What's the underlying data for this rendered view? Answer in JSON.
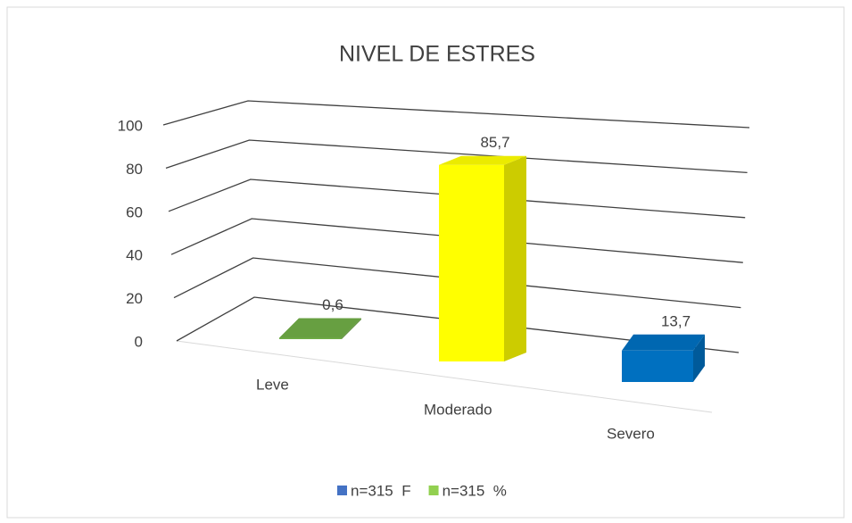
{
  "chart_data": {
    "type": "bar3d",
    "title": "NIVEL DE ESTRES",
    "categories": [
      "Leve",
      "Moderado",
      "Severo"
    ],
    "values": [
      0.6,
      85.7,
      13.7
    ],
    "value_labels": [
      "0,6",
      "85,7",
      "13,7"
    ],
    "colors": [
      "#70ad47",
      "#ffff00",
      "#0070c0"
    ],
    "ylim": [
      0,
      100
    ],
    "yticks": [
      0,
      20,
      40,
      60,
      80,
      100
    ],
    "grid": true,
    "legend_position": "bottom",
    "legend": [
      {
        "name": "n=315  F",
        "color": "#4472c4"
      },
      {
        "name": "n=315  %",
        "color": "#92d050"
      }
    ]
  }
}
